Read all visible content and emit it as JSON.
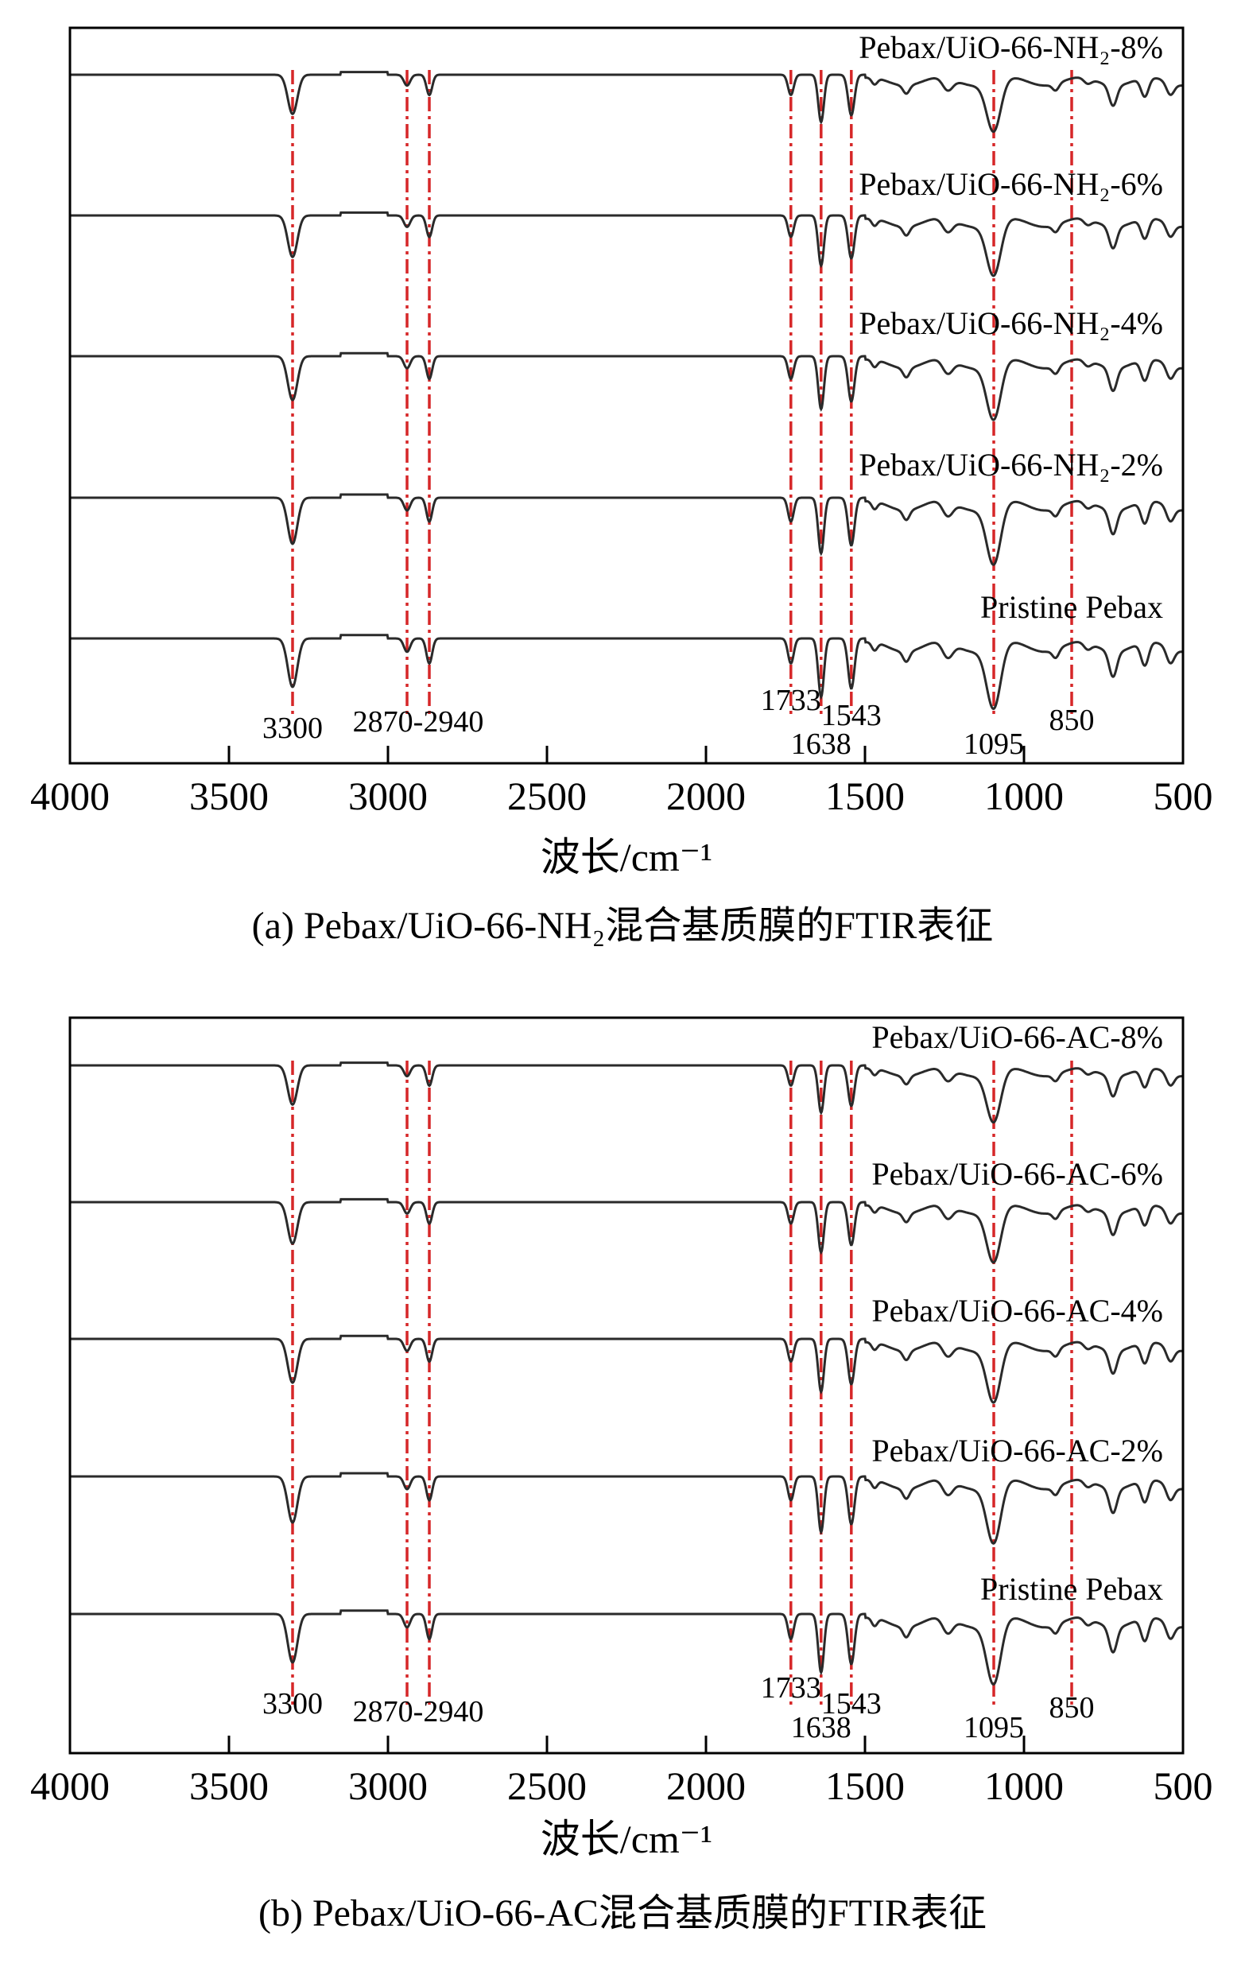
{
  "chart_data": [
    {
      "type": "line",
      "caption": "(a) Pebax/UiO-66-NH₂混合基质膜的FTIR表征",
      "xlabel": "波长/cm⁻¹",
      "ylabel": "",
      "xlim": [
        4000,
        500
      ],
      "x_ticks": [
        "4000",
        "3500",
        "3000",
        "2500",
        "2000",
        "1500",
        "1000",
        "500"
      ],
      "y_ticks": [],
      "grid": false,
      "series": [
        {
          "name": "Pebax/UiO-66-NH₂-8%"
        },
        {
          "name": "Pebax/UiO-66-NH₂-6%"
        },
        {
          "name": "Pebax/UiO-66-NH₂-4%"
        },
        {
          "name": "Pebax/UiO-66-NH₂-2%"
        },
        {
          "name": "Pristine Pebax"
        }
      ],
      "reference_lines": [
        3300,
        2940,
        2870,
        1733,
        1638,
        1543,
        1095,
        850
      ],
      "peak_labels": [
        {
          "text": "3300",
          "x": 3300
        },
        {
          "text": "2870-2940",
          "x": 2905
        },
        {
          "text": "1733",
          "x": 1733
        },
        {
          "text": "1638",
          "x": 1638
        },
        {
          "text": "1543",
          "x": 1543
        },
        {
          "text": "1095",
          "x": 1095
        },
        {
          "text": "850",
          "x": 850
        }
      ]
    },
    {
      "type": "line",
      "caption": "(b) Pebax/UiO-66-AC混合基质膜的FTIR表征",
      "xlabel": "波长/cm⁻¹",
      "ylabel": "",
      "xlim": [
        4000,
        500
      ],
      "x_ticks": [
        "4000",
        "3500",
        "3000",
        "2500",
        "2000",
        "1500",
        "1000",
        "500"
      ],
      "y_ticks": [],
      "grid": false,
      "series": [
        {
          "name": "Pebax/UiO-66-AC-8%"
        },
        {
          "name": "Pebax/UiO-66-AC-6%"
        },
        {
          "name": "Pebax/UiO-66-AC-4%"
        },
        {
          "name": "Pebax/UiO-66-AC-2%"
        },
        {
          "name": "Pristine Pebax"
        }
      ],
      "reference_lines": [
        3300,
        2940,
        2870,
        1733,
        1638,
        1543,
        1095,
        850
      ],
      "peak_labels": [
        {
          "text": "3300",
          "x": 3300
        },
        {
          "text": "2870-2940",
          "x": 2905
        },
        {
          "text": "1733",
          "x": 1733
        },
        {
          "text": "1638",
          "x": 1638
        },
        {
          "text": "1543",
          "x": 1543
        },
        {
          "text": "1095",
          "x": 1095
        },
        {
          "text": "850",
          "x": 850
        }
      ]
    }
  ],
  "style": {
    "trace_color": "#2a2a2a",
    "ref_line_color": "#d62728",
    "axis_color": "#000000"
  }
}
